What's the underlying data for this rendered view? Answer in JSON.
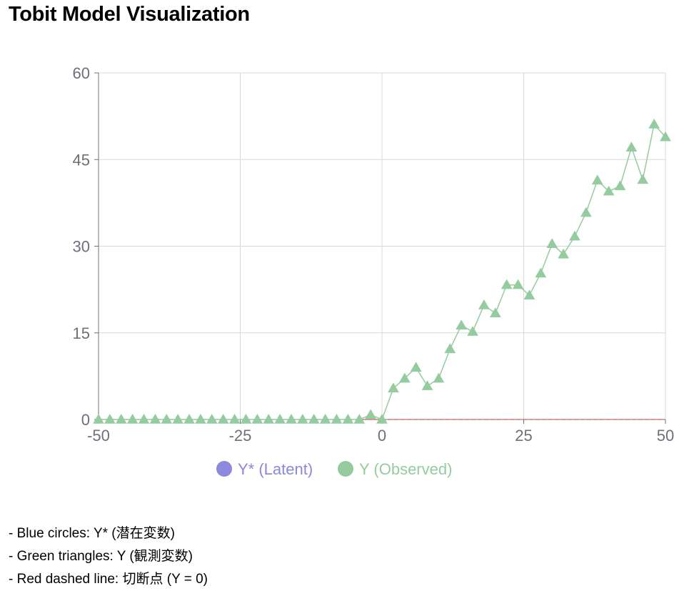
{
  "page": {
    "title": "Tobit Model Visualization"
  },
  "notes": [
    "- Blue circles: Y* (潜在変数)",
    "- Green triangles: Y (観測変数)",
    "- Red dashed line: 切断点 (Y = 0)"
  ],
  "colors": {
    "latent": "#8b88dd",
    "observed": "#95cc9f",
    "cutoff": "#d9534f",
    "grid": "#d8d8d8",
    "axis": "#6e7079"
  },
  "chart_data": {
    "type": "scatter",
    "title": "",
    "xlabel": "",
    "ylabel": "",
    "xlim": [
      -50,
      50
    ],
    "ylim": [
      0,
      60
    ],
    "xticks": [
      "-50",
      "-25",
      "0",
      "25",
      "50"
    ],
    "yticks": [
      "0",
      "15",
      "30",
      "45",
      "60"
    ],
    "grid": true,
    "legend_position": "bottom",
    "legend": [
      {
        "name": "Y* (Latent)",
        "marker": "circle",
        "color": "#8b88dd"
      },
      {
        "name": "Y (Observed)",
        "marker": "circle",
        "color": "#95cc9f"
      }
    ],
    "cutoff": {
      "y": 0,
      "style": "dashed",
      "color": "#d9534f"
    },
    "series": [
      {
        "name": "Y (Observed)",
        "marker": "triangle",
        "color": "#95cc9f",
        "connected": true,
        "x": [
          -50,
          -48,
          -46,
          -44,
          -42,
          -40,
          -38,
          -36,
          -34,
          -32,
          -30,
          -28,
          -26,
          -24,
          -22,
          -20,
          -18,
          -16,
          -14,
          -12,
          -10,
          -8,
          -6,
          -4,
          -2,
          0,
          2,
          4,
          6,
          8,
          10,
          12,
          14,
          16,
          18,
          20,
          22,
          24,
          26,
          28,
          30,
          32,
          34,
          36,
          38,
          40,
          42,
          44,
          46,
          48,
          50
        ],
        "y": [
          0,
          0,
          0,
          0,
          0,
          0,
          0,
          0,
          0,
          0,
          0,
          0,
          0,
          0,
          0,
          0,
          0,
          0,
          0,
          0,
          0,
          0,
          0,
          0,
          0.8,
          0,
          5.4,
          7.1,
          9,
          5.8,
          7.1,
          12.2,
          16.3,
          15.2,
          19.8,
          18.4,
          23.3,
          23.3,
          21.5,
          25.3,
          30.4,
          28.6,
          31.7,
          35.8,
          41.4,
          39.5,
          40.4,
          47.1,
          41.5,
          51.1,
          48.9
        ]
      }
    ]
  }
}
